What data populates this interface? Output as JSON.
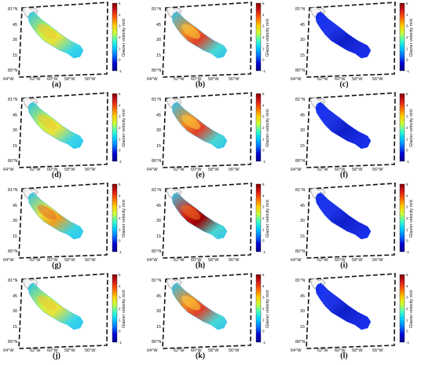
{
  "axes": {
    "lat_labels": [
      "81°N",
      "45",
      "30",
      "15",
      "80°N"
    ],
    "lon_labels": [
      "64°W",
      "62°W",
      "60°W",
      "58°W",
      "56°W"
    ]
  },
  "colorbar": {
    "title": "Glacier velocity  m/d",
    "ticks": [
      "5",
      "4",
      "3",
      "2",
      "1",
      "0",
      "-1"
    ],
    "colors": [
      "#7f0000",
      "#d7191c",
      "#ff6a00",
      "#ffd000",
      "#c8ff3c",
      "#3cffc8",
      "#00c8ff",
      "#006fff",
      "#0000d0",
      "#00008b"
    ]
  },
  "panels": [
    {
      "label": "(a)",
      "scheme": "moderate"
    },
    {
      "label": "(b)",
      "scheme": "high"
    },
    {
      "label": "(c)",
      "scheme": "low"
    },
    {
      "label": "(d)",
      "scheme": "moderate"
    },
    {
      "label": "(e)",
      "scheme": "high"
    },
    {
      "label": "(f)",
      "scheme": "low"
    },
    {
      "label": "(g)",
      "scheme": "moderate-high"
    },
    {
      "label": "(h)",
      "scheme": "very-high"
    },
    {
      "label": "(i)",
      "scheme": "low"
    },
    {
      "label": "(j)",
      "scheme": "moderate"
    },
    {
      "label": "(k)",
      "scheme": "high"
    },
    {
      "label": "(l)",
      "scheme": "low"
    }
  ]
}
